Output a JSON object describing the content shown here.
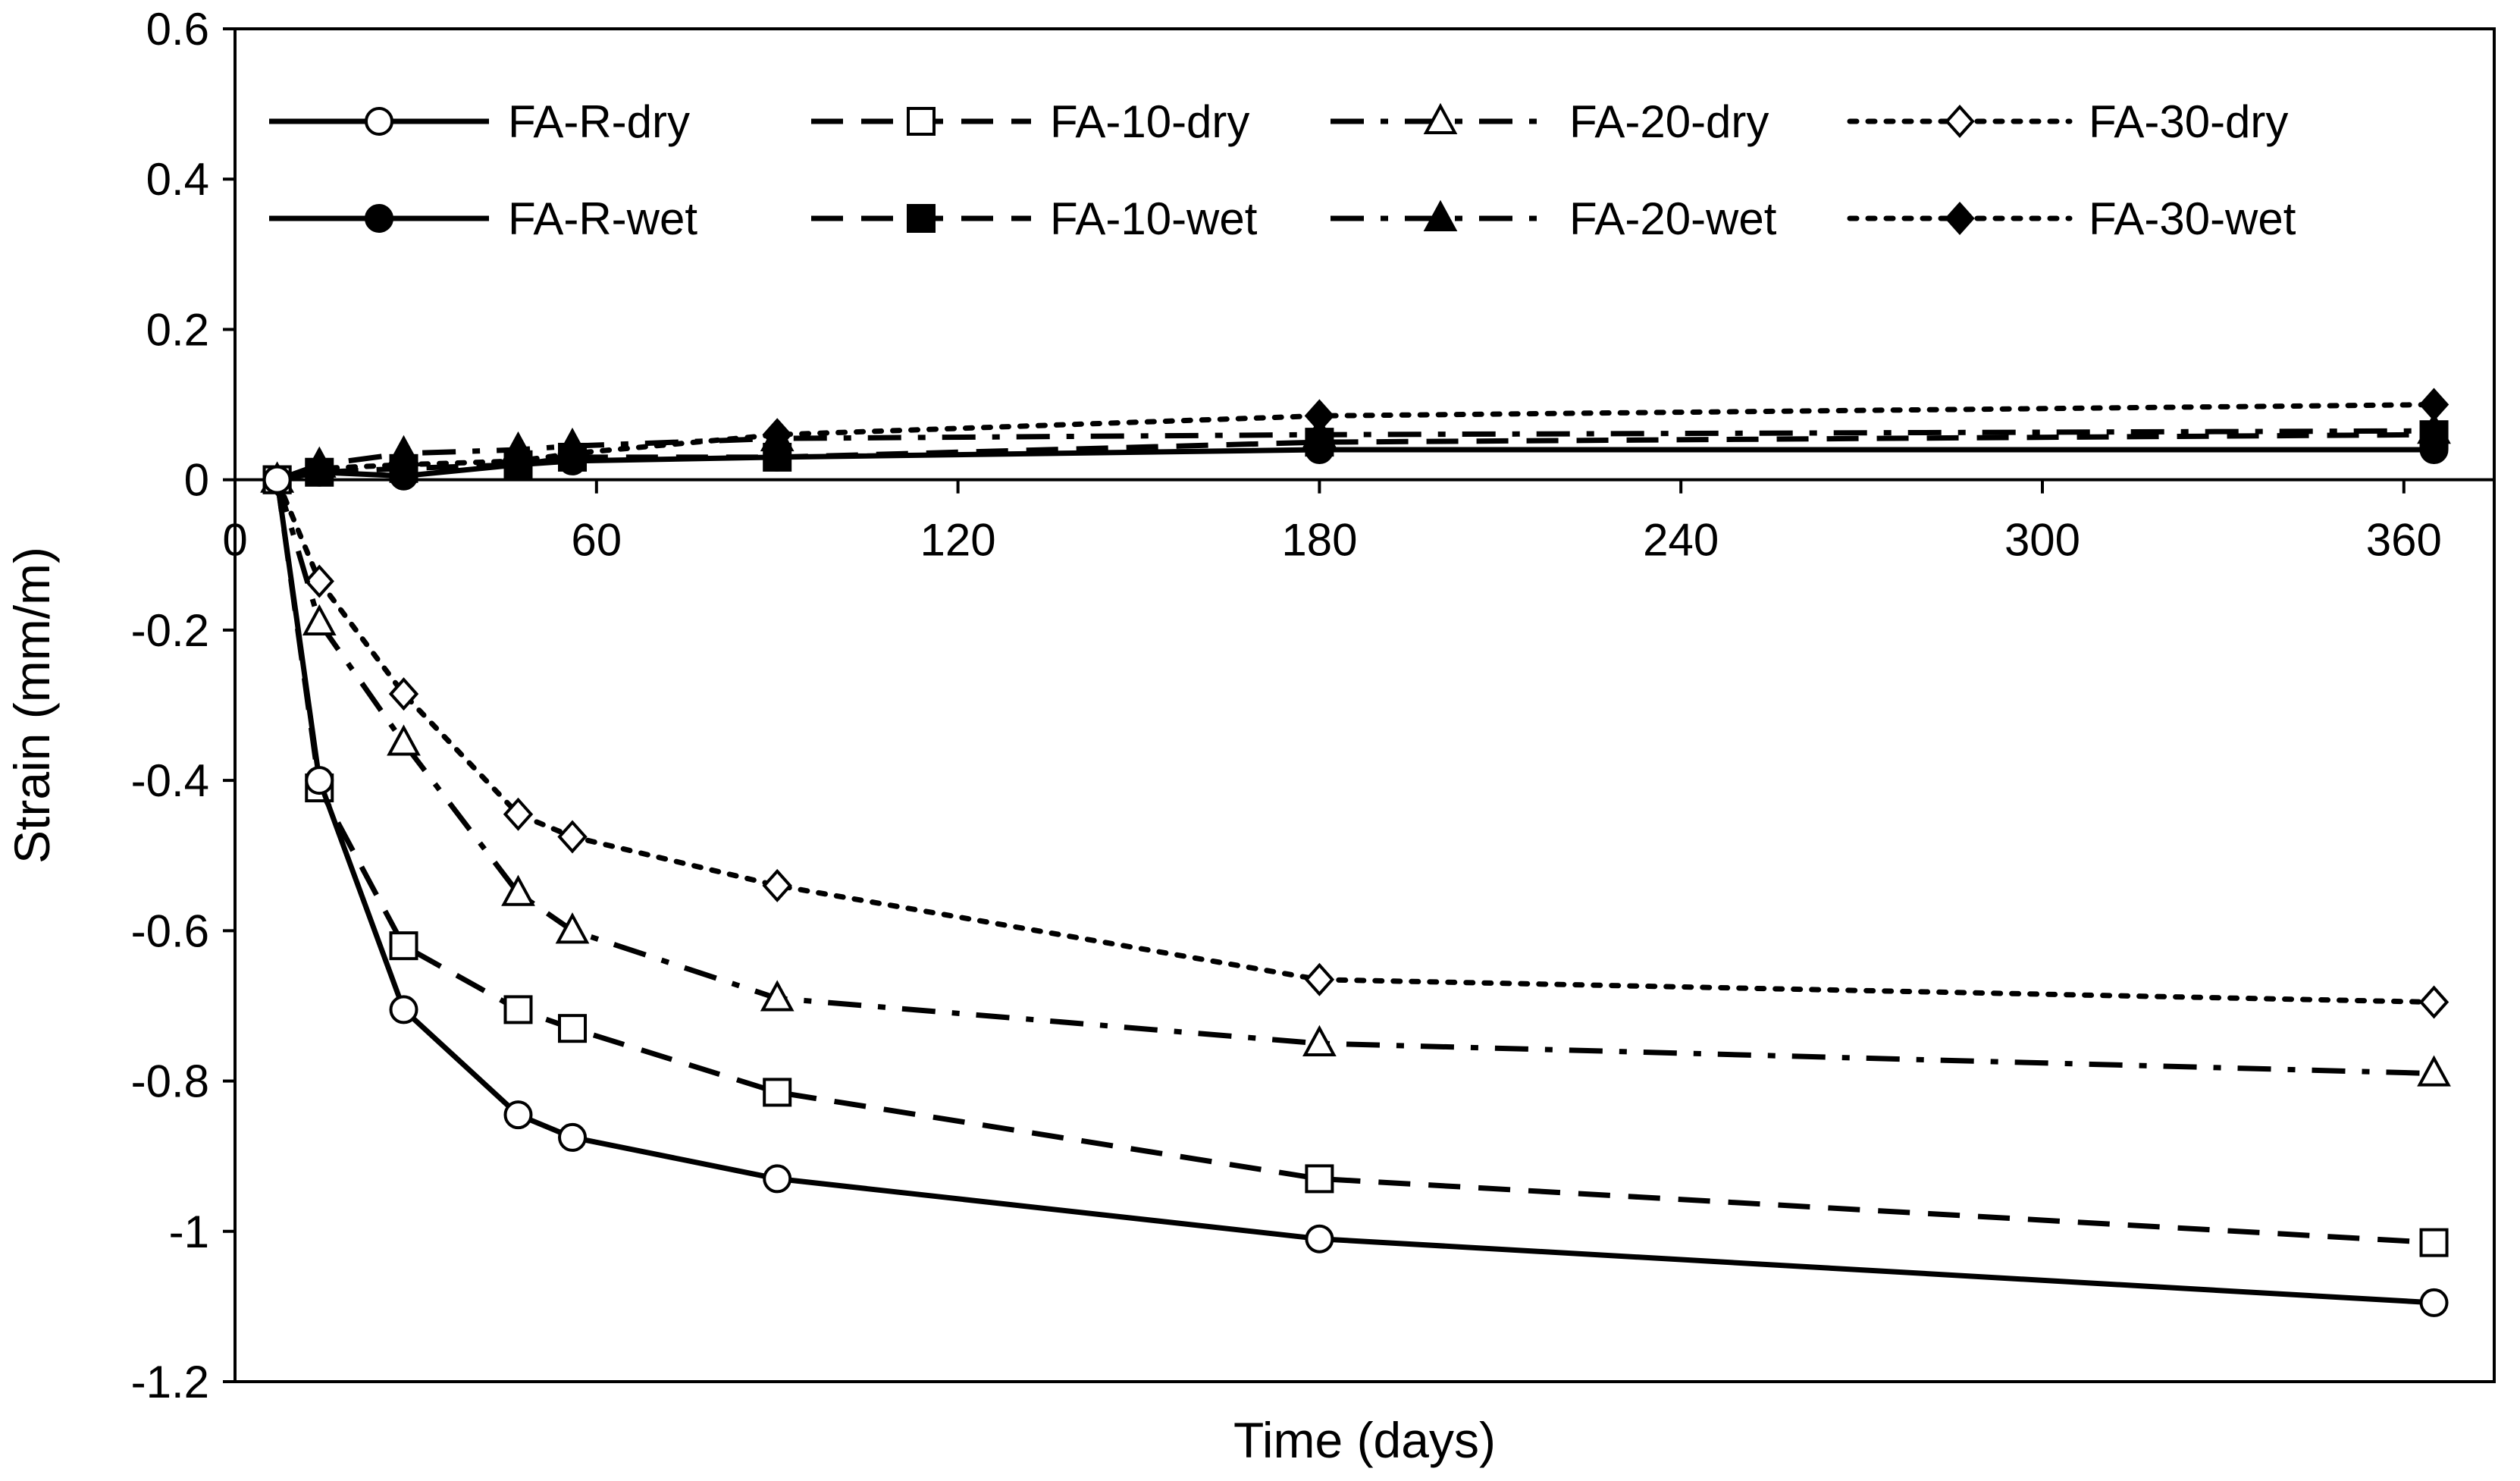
{
  "colors": {
    "line": "#000000",
    "background": "#ffffff"
  },
  "chart_data": {
    "type": "line",
    "title": "",
    "xlabel": "Time (days)",
    "ylabel": "Strain (mm/m)",
    "xlim": [
      0,
      375
    ],
    "ylim": [
      -1.2,
      0.6
    ],
    "xticks": [
      0,
      60,
      120,
      180,
      240,
      300,
      360
    ],
    "yticks": [
      0.6,
      0.4,
      0.2,
      0,
      -0.2,
      -0.4,
      -0.6,
      -0.8,
      -1,
      -1.2
    ],
    "xtick_labels": [
      "0",
      "60",
      "120",
      "180",
      "240",
      "300",
      "360"
    ],
    "ytick_labels": [
      "0.6",
      "0.4",
      "0.2",
      "0",
      "-0.2",
      "-0.4",
      "-0.6",
      "-0.8",
      "-1",
      "-1.2"
    ],
    "grid": false,
    "legend_position": "top",
    "x": [
      7,
      14,
      28,
      47,
      56,
      90,
      180,
      365
    ],
    "series": [
      {
        "name": "FA-R-dry",
        "line": "solid",
        "marker": "circle",
        "filled": false,
        "values": [
          0,
          -0.4,
          -0.705,
          -0.845,
          -0.875,
          -0.93,
          -1.01,
          -1.095
        ]
      },
      {
        "name": "FA-10-dry",
        "line": "dash",
        "marker": "square",
        "filled": false,
        "values": [
          0,
          -0.41,
          -0.62,
          -0.705,
          -0.73,
          -0.815,
          -0.93,
          -1.015
        ]
      },
      {
        "name": "FA-20-dry",
        "line": "dashdot",
        "marker": "triangle",
        "filled": false,
        "values": [
          0,
          -0.19,
          -0.35,
          -0.55,
          -0.6,
          -0.69,
          -0.75,
          -0.79
        ]
      },
      {
        "name": "FA-30-dry",
        "line": "dot",
        "marker": "diamond",
        "filled": false,
        "values": [
          0,
          -0.135,
          -0.285,
          -0.445,
          -0.475,
          -0.54,
          -0.665,
          -0.695
        ]
      },
      {
        "name": "FA-R-wet",
        "line": "solid",
        "marker": "circle",
        "filled": true,
        "values": [
          0,
          0.01,
          0.005,
          0.02,
          0.025,
          0.03,
          0.04,
          0.04
        ]
      },
      {
        "name": "FA-10-wet",
        "line": "dash",
        "marker": "square",
        "filled": true,
        "values": [
          0,
          0.01,
          0.015,
          0.02,
          0.03,
          0.03,
          0.05,
          0.06
        ]
      },
      {
        "name": "FA-20-wet",
        "line": "dashdot",
        "marker": "triangle",
        "filled": true,
        "values": [
          0,
          0.02,
          0.035,
          0.04,
          0.045,
          0.055,
          0.06,
          0.065
        ]
      },
      {
        "name": "FA-30-wet",
        "line": "dot",
        "marker": "diamond",
        "filled": true,
        "values": [
          0,
          0.015,
          0.02,
          0.025,
          0.035,
          0.06,
          0.085,
          0.1
        ]
      }
    ],
    "legend_order": [
      "FA-R-dry",
      "FA-10-dry",
      "FA-20-dry",
      "FA-30-dry",
      "FA-R-wet",
      "FA-10-wet",
      "FA-20-wet",
      "FA-30-wet"
    ]
  }
}
